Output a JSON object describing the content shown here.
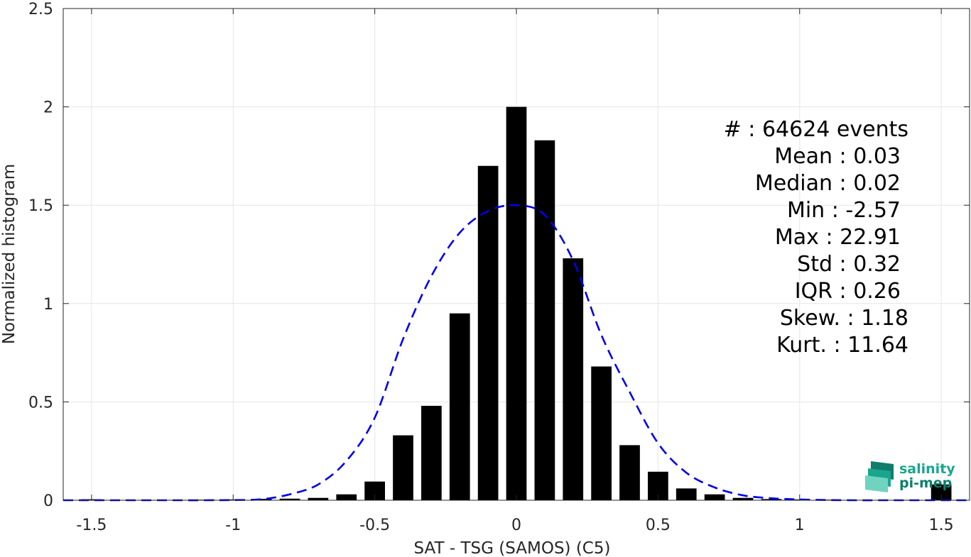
{
  "chart_data": {
    "type": "bar",
    "xlabel": "SAT - TSG (SAMOS) (C5)",
    "ylabel": "Normalized histogram",
    "xlim": [
      -1.6,
      1.6
    ],
    "ylim": [
      0,
      2.5
    ],
    "xticks": [
      "-1.5",
      "-1",
      "-0.5",
      "0",
      "0.5",
      "1",
      "1.5"
    ],
    "yticks": [
      "0",
      "0.5",
      "1",
      "1.5",
      "2",
      "2.5"
    ],
    "grid": true,
    "bar_color": "#000000",
    "fit_color": "#0000ee",
    "bins": {
      "x": [
        -1.5,
        -1.4,
        -1.3,
        -1.2,
        -1.1,
        -1.0,
        -0.9,
        -0.8,
        -0.7,
        -0.6,
        -0.5,
        -0.4,
        -0.3,
        -0.2,
        -0.1,
        0.0,
        0.1,
        0.2,
        0.3,
        0.4,
        0.5,
        0.6,
        0.7,
        0.8,
        0.9,
        1.0,
        1.1,
        1.2,
        1.3,
        1.4,
        1.5
      ],
      "values": [
        0.005,
        0.002,
        0.002,
        0.002,
        0.003,
        0.004,
        0.007,
        0.008,
        0.012,
        0.03,
        0.095,
        0.33,
        0.48,
        0.95,
        1.7,
        2.0,
        1.83,
        1.23,
        0.68,
        0.28,
        0.145,
        0.06,
        0.03,
        0.012,
        0.006,
        0.004,
        0.003,
        0.002,
        0.002,
        0.002,
        0.08
      ]
    },
    "fit_curve": {
      "name": "Gaussian fit",
      "style": "dashed",
      "x": [
        -1.6,
        -1.5,
        -1.4,
        -1.3,
        -1.2,
        -1.1,
        -1.0,
        -0.9,
        -0.8,
        -0.7,
        -0.6,
        -0.5,
        -0.4,
        -0.3,
        -0.2,
        -0.1,
        0.0,
        0.1,
        0.2,
        0.3,
        0.4,
        0.5,
        0.6,
        0.7,
        0.8,
        0.9,
        1.0,
        1.1,
        1.2,
        1.3,
        1.4,
        1.5,
        1.6
      ],
      "y": [
        0.0,
        0.0,
        0.0,
        0.0,
        0.0,
        0.0,
        0.001,
        0.005,
        0.03,
        0.08,
        0.2,
        0.42,
        0.82,
        1.14,
        1.36,
        1.47,
        1.5,
        1.45,
        1.22,
        0.84,
        0.55,
        0.29,
        0.14,
        0.065,
        0.025,
        0.01,
        0.004,
        0.001,
        0.0,
        0.0,
        0.0,
        0.0,
        0.0
      ]
    },
    "stats": [
      {
        "label": "#  : 64624 events"
      },
      {
        "label": "Mean : 0.03"
      },
      {
        "label": "Median : 0.02"
      },
      {
        "label": "Min : -2.57"
      },
      {
        "label": "Max : 22.91"
      },
      {
        "label": "Std : 0.32"
      },
      {
        "label": "IQR : 0.26"
      },
      {
        "label": "Skew. : 1.18"
      },
      {
        "label": "Kurt. : 11.64"
      }
    ]
  },
  "logo": {
    "line1": "salinity",
    "line2": "pi-mep",
    "color_primary": "#1aa58c",
    "color_secondary": "#0e7d6a"
  }
}
